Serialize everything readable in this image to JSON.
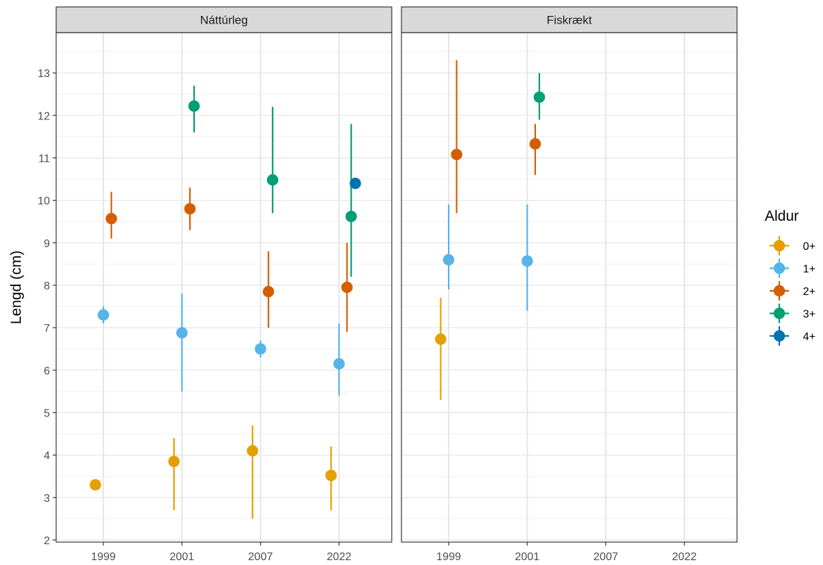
{
  "chart_data": {
    "type": "scatter",
    "ylabel": "Lengd (cm)",
    "xlabel": "",
    "ylim": [
      1.95,
      13.95
    ],
    "yticks": [
      2,
      3,
      4,
      5,
      6,
      7,
      8,
      9,
      10,
      11,
      12,
      13
    ],
    "categories": [
      "1999",
      "2001",
      "2007",
      "2022"
    ],
    "grid": true,
    "legend": {
      "title": "Aldur",
      "position": "right",
      "entries": [
        {
          "label": "0+",
          "color": "#E69F00"
        },
        {
          "label": "1+",
          "color": "#56B4E9"
        },
        {
          "label": "2+",
          "color": "#D55E00"
        },
        {
          "label": "3+",
          "color": "#009E73"
        },
        {
          "label": "4+",
          "color": "#0072B2"
        }
      ]
    },
    "panels": [
      {
        "title": "Náttúrleg",
        "points": [
          {
            "year": "1999",
            "age": "0+",
            "y": 3.3,
            "lo": 3.3,
            "hi": 3.3
          },
          {
            "year": "1999",
            "age": "1+",
            "y": 7.3,
            "lo": 7.1,
            "hi": 7.5
          },
          {
            "year": "1999",
            "age": "2+",
            "y": 9.57,
            "lo": 9.1,
            "hi": 10.2
          },
          {
            "year": "2001",
            "age": "0+",
            "y": 3.85,
            "lo": 2.7,
            "hi": 4.4
          },
          {
            "year": "2001",
            "age": "1+",
            "y": 6.88,
            "lo": 5.5,
            "hi": 7.8
          },
          {
            "year": "2001",
            "age": "2+",
            "y": 9.8,
            "lo": 9.3,
            "hi": 10.3
          },
          {
            "year": "2001",
            "age": "3+",
            "y": 12.22,
            "lo": 11.6,
            "hi": 12.7
          },
          {
            "year": "2007",
            "age": "0+",
            "y": 4.1,
            "lo": 2.5,
            "hi": 4.7
          },
          {
            "year": "2007",
            "age": "1+",
            "y": 6.5,
            "lo": 6.3,
            "hi": 6.7
          },
          {
            "year": "2007",
            "age": "2+",
            "y": 7.85,
            "lo": 7.0,
            "hi": 8.8
          },
          {
            "year": "2007",
            "age": "3+",
            "y": 10.48,
            "lo": 9.7,
            "hi": 12.2
          },
          {
            "year": "2022",
            "age": "0+",
            "y": 3.52,
            "lo": 2.7,
            "hi": 4.2
          },
          {
            "year": "2022",
            "age": "1+",
            "y": 6.15,
            "lo": 5.4,
            "hi": 7.1
          },
          {
            "year": "2022",
            "age": "2+",
            "y": 7.95,
            "lo": 6.9,
            "hi": 9.0
          },
          {
            "year": "2022",
            "age": "3+",
            "y": 9.62,
            "lo": 8.2,
            "hi": 11.8
          },
          {
            "year": "2022",
            "age": "4+",
            "y": 10.4,
            "lo": 10.4,
            "hi": 10.4
          }
        ]
      },
      {
        "title": "Fiskrækt",
        "points": [
          {
            "year": "1999",
            "age": "0+",
            "y": 6.73,
            "lo": 5.3,
            "hi": 7.7
          },
          {
            "year": "1999",
            "age": "1+",
            "y": 8.6,
            "lo": 7.9,
            "hi": 9.9
          },
          {
            "year": "1999",
            "age": "2+",
            "y": 11.08,
            "lo": 9.7,
            "hi": 13.3
          },
          {
            "year": "2001",
            "age": "1+",
            "y": 8.57,
            "lo": 7.4,
            "hi": 9.9
          },
          {
            "year": "2001",
            "age": "2+",
            "y": 11.33,
            "lo": 10.6,
            "hi": 11.8
          },
          {
            "year": "2001",
            "age": "3+",
            "y": 12.43,
            "lo": 11.9,
            "hi": 13.0
          }
        ]
      }
    ]
  }
}
